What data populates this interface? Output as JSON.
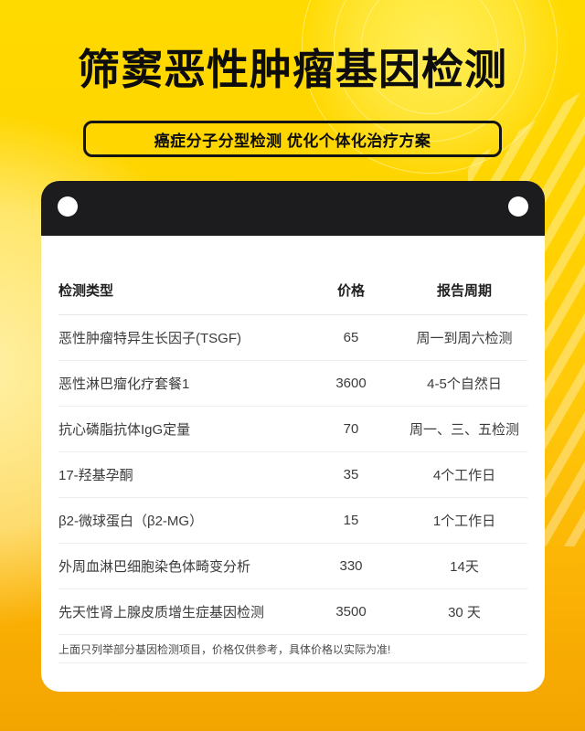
{
  "header": {
    "title": "筛窦恶性肿瘤基因检测",
    "tagline": "癌症分子分型检测 优化个体化治疗方案"
  },
  "price_table": {
    "columns": {
      "type": "检测类型",
      "price": "价格",
      "cycle": "报告周期"
    },
    "rows": [
      {
        "name": "恶性肿瘤特异生长因子(TSGF)",
        "price": "65",
        "cycle": "周一到周六检测"
      },
      {
        "name": "恶性淋巴瘤化疗套餐1",
        "price": "3600",
        "cycle": "4-5个自然日"
      },
      {
        "name": "抗心磷脂抗体IgG定量",
        "price": "70",
        "cycle": "周一、三、五检测"
      },
      {
        "name": "17-羟基孕酮",
        "price": "35",
        "cycle": "4个工作日"
      },
      {
        "name": "β2-微球蛋白（β2-MG）",
        "price": "15",
        "cycle": "1个工作日"
      },
      {
        "name": "外周血淋巴细胞染色体畸变分析",
        "price": "330",
        "cycle": "14天"
      },
      {
        "name": "先天性肾上腺皮质增生症基因检测",
        "price": "3500",
        "cycle": "30 天"
      }
    ],
    "note": "上面只列举部分基因检测项目，价格仅供参考，具体价格以实际为准!"
  },
  "colors": {
    "background_top": "#FFDA00",
    "background_bottom": "#F2A500",
    "card_header_bar": "#1C1C1E",
    "card_background": "#FFFFFF",
    "title_text": "#0D0D0D",
    "row_text": "#3B3B3B",
    "divider": "#EDEDED"
  }
}
